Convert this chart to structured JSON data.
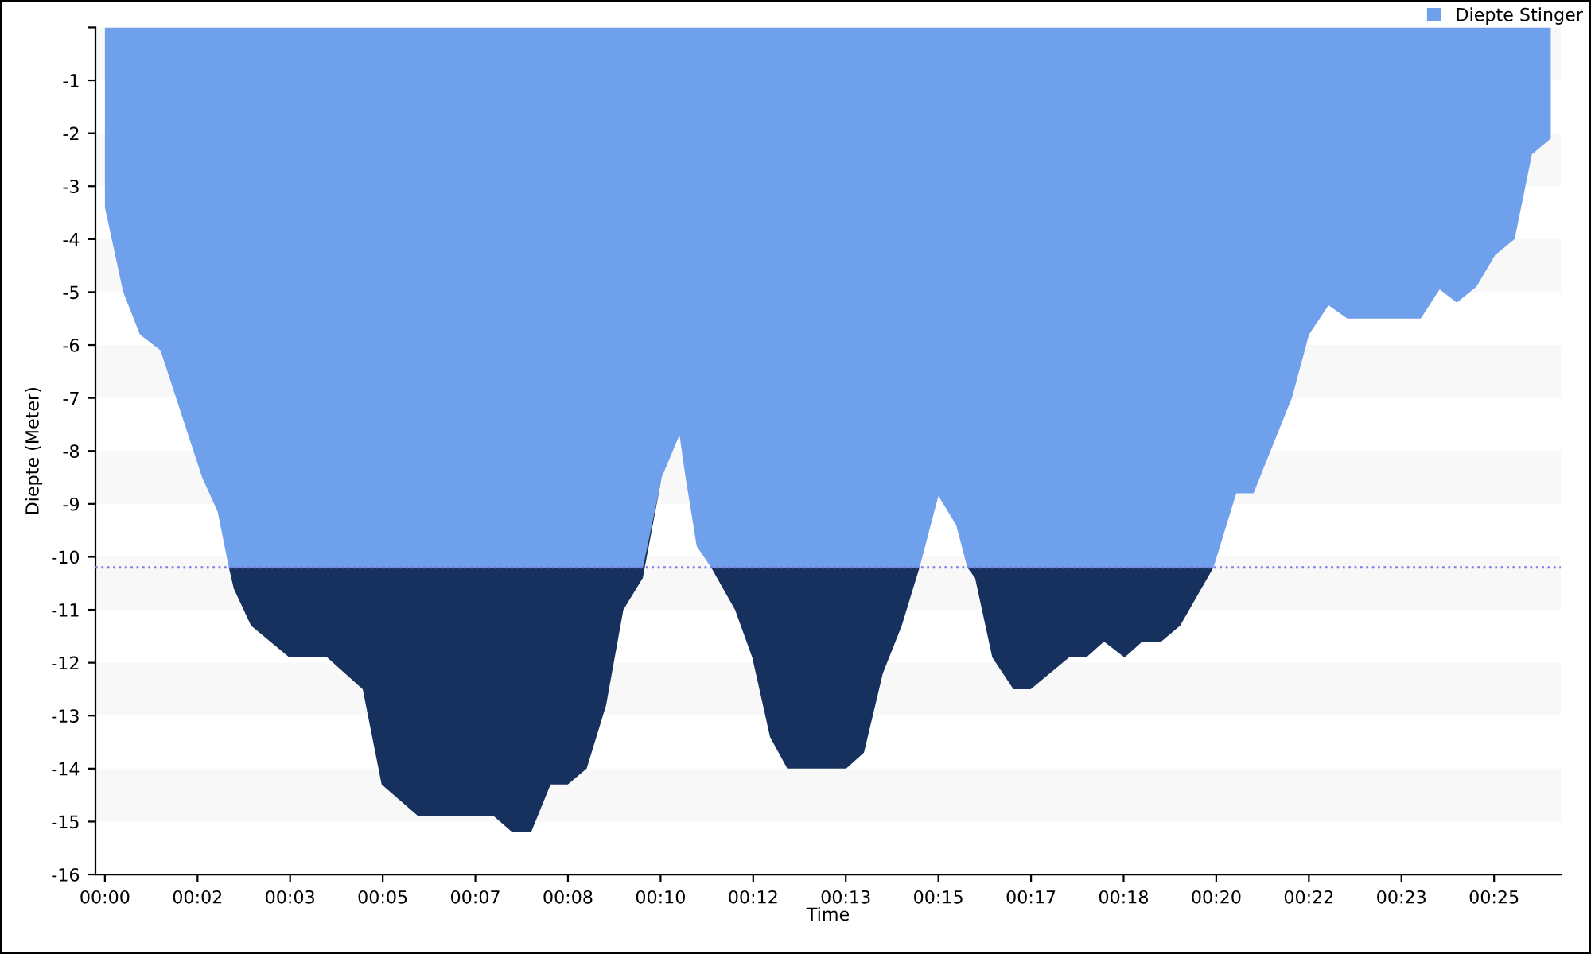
{
  "chart_data": {
    "type": "area",
    "stacked": true,
    "xlabel": "Time",
    "ylabel": "Diepte (Meter)",
    "x": [
      0,
      0.33,
      0.63,
      1.0,
      1.75,
      2.03,
      2.23,
      2.32,
      2.63,
      3.32,
      4.0,
      4.64,
      4.98,
      5.64,
      7.0,
      7.33,
      7.67,
      8.02,
      8.33,
      8.67,
      9.02,
      9.33,
      9.68,
      10.02,
      10.34,
      10.45,
      10.65,
      10.91,
      11.34,
      11.65,
      11.97,
      12.28,
      13.34,
      13.66,
      14.0,
      14.34,
      14.66,
      15.0,
      15.32,
      15.52,
      15.66,
      15.97,
      16.35,
      16.66,
      17.35,
      17.66,
      17.98,
      18.35,
      18.67,
      19.01,
      19.35,
      19.95,
      20.36,
      20.67,
      21.36,
      21.67,
      22.02,
      22.36,
      23.68,
      24.02,
      24.33,
      24.68,
      25.02,
      25.37,
      25.68,
      26.02
    ],
    "series": [
      {
        "name": "Diepte Stinger",
        "color": "#6fa0eb",
        "values": [
          -3.4,
          -5.0,
          -5.8,
          -6.1,
          -8.5,
          -9.15,
          -10.2,
          -10.2,
          -10.2,
          -10.2,
          -10.2,
          -10.2,
          -10.2,
          -10.2,
          -10.2,
          -10.2,
          -10.2,
          -10.2,
          -10.2,
          -10.2,
          -10.2,
          -10.2,
          -10.2,
          -8.5,
          -7.7,
          -8.5,
          -9.8,
          -10.2,
          -10.2,
          -10.2,
          -10.2,
          -10.2,
          -10.2,
          -10.2,
          -10.2,
          -10.2,
          -10.2,
          -8.85,
          -9.4,
          -10.2,
          -10.2,
          -10.2,
          -10.2,
          -10.2,
          -10.2,
          -10.2,
          -10.2,
          -10.2,
          -10.2,
          -10.2,
          -10.2,
          -10.2,
          -8.8,
          -8.8,
          -7.0,
          -5.8,
          -5.25,
          -5.5,
          -5.5,
          -4.95,
          -5.2,
          -4.9,
          -4.3,
          -4.0,
          -2.4,
          -2.1
        ]
      },
      {
        "color": "#17315e",
        "values": [
          0,
          0,
          0,
          0,
          0,
          0,
          0,
          -0.4,
          -1.1,
          -1.7,
          -1.7,
          -2.3,
          -4.1,
          -4.7,
          -4.7,
          -5.0,
          -5.0,
          -4.1,
          -4.1,
          -3.8,
          -2.6,
          -0.8,
          -0.2,
          0,
          0,
          0,
          0,
          0,
          -0.8,
          -1.7,
          -3.2,
          -3.8,
          -3.8,
          -3.5,
          -2.0,
          -1.1,
          0,
          0,
          0,
          0,
          -0.2,
          -1.7,
          -2.3,
          -2.3,
          -1.7,
          -1.7,
          -1.4,
          -1.7,
          -1.4,
          -1.4,
          -1.1,
          0,
          0,
          0,
          0,
          0,
          0,
          0,
          0,
          0,
          0,
          0,
          0,
          0,
          0,
          0
        ]
      }
    ],
    "xlim": [
      -0.17,
      26.2
    ],
    "xticks": [
      {
        "value": 0,
        "label": "00:00"
      },
      {
        "value": 1.667,
        "label": "00:02"
      },
      {
        "value": 3.333,
        "label": "00:03"
      },
      {
        "value": 5,
        "label": "00:05"
      },
      {
        "value": 6.667,
        "label": "00:07"
      },
      {
        "value": 8.333,
        "label": "00:08"
      },
      {
        "value": 10,
        "label": "00:10"
      },
      {
        "value": 11.667,
        "label": "00:12"
      },
      {
        "value": 13.333,
        "label": "00:13"
      },
      {
        "value": 15,
        "label": "00:15"
      },
      {
        "value": 16.667,
        "label": "00:17"
      },
      {
        "value": 18.333,
        "label": "00:18"
      },
      {
        "value": 20,
        "label": "00:20"
      },
      {
        "value": 21.667,
        "label": "00:22"
      },
      {
        "value": 23.333,
        "label": "00:23"
      },
      {
        "value": 25,
        "label": "00:25"
      }
    ],
    "ylim": [
      -16,
      0
    ],
    "yticks": [
      -16,
      -15,
      -14,
      -13,
      -12,
      -11,
      -10,
      -9,
      -8,
      -7,
      -6,
      -5,
      -4,
      -3,
      -2,
      -1,
      {
        "value": 0,
        "label": null
      }
    ],
    "ref_lines": [
      {
        "axis": "y",
        "value": -10.2,
        "color": "#7b7bef",
        "line_style": "dotted"
      }
    ],
    "bands": [
      {
        "axis": "y",
        "from": -15,
        "to": -14,
        "color": "#f8f8f8"
      },
      {
        "axis": "y",
        "from": -13,
        "to": -12,
        "color": "#f8f8f8"
      },
      {
        "axis": "y",
        "from": -11,
        "to": -10,
        "color": "#f8f8f8"
      },
      {
        "axis": "y",
        "from": -9,
        "to": -8,
        "color": "#f8f8f8"
      },
      {
        "axis": "y",
        "from": -7,
        "to": -6,
        "color": "#f8f8f8"
      },
      {
        "axis": "y",
        "from": -5,
        "to": -4,
        "color": "#f8f8f8"
      },
      {
        "axis": "y",
        "from": -3,
        "to": -2,
        "color": "#f8f8f8"
      },
      {
        "axis": "y",
        "from": -1,
        "to": 0,
        "color": "#f8f8f8"
      }
    ],
    "legend": "top right"
  }
}
